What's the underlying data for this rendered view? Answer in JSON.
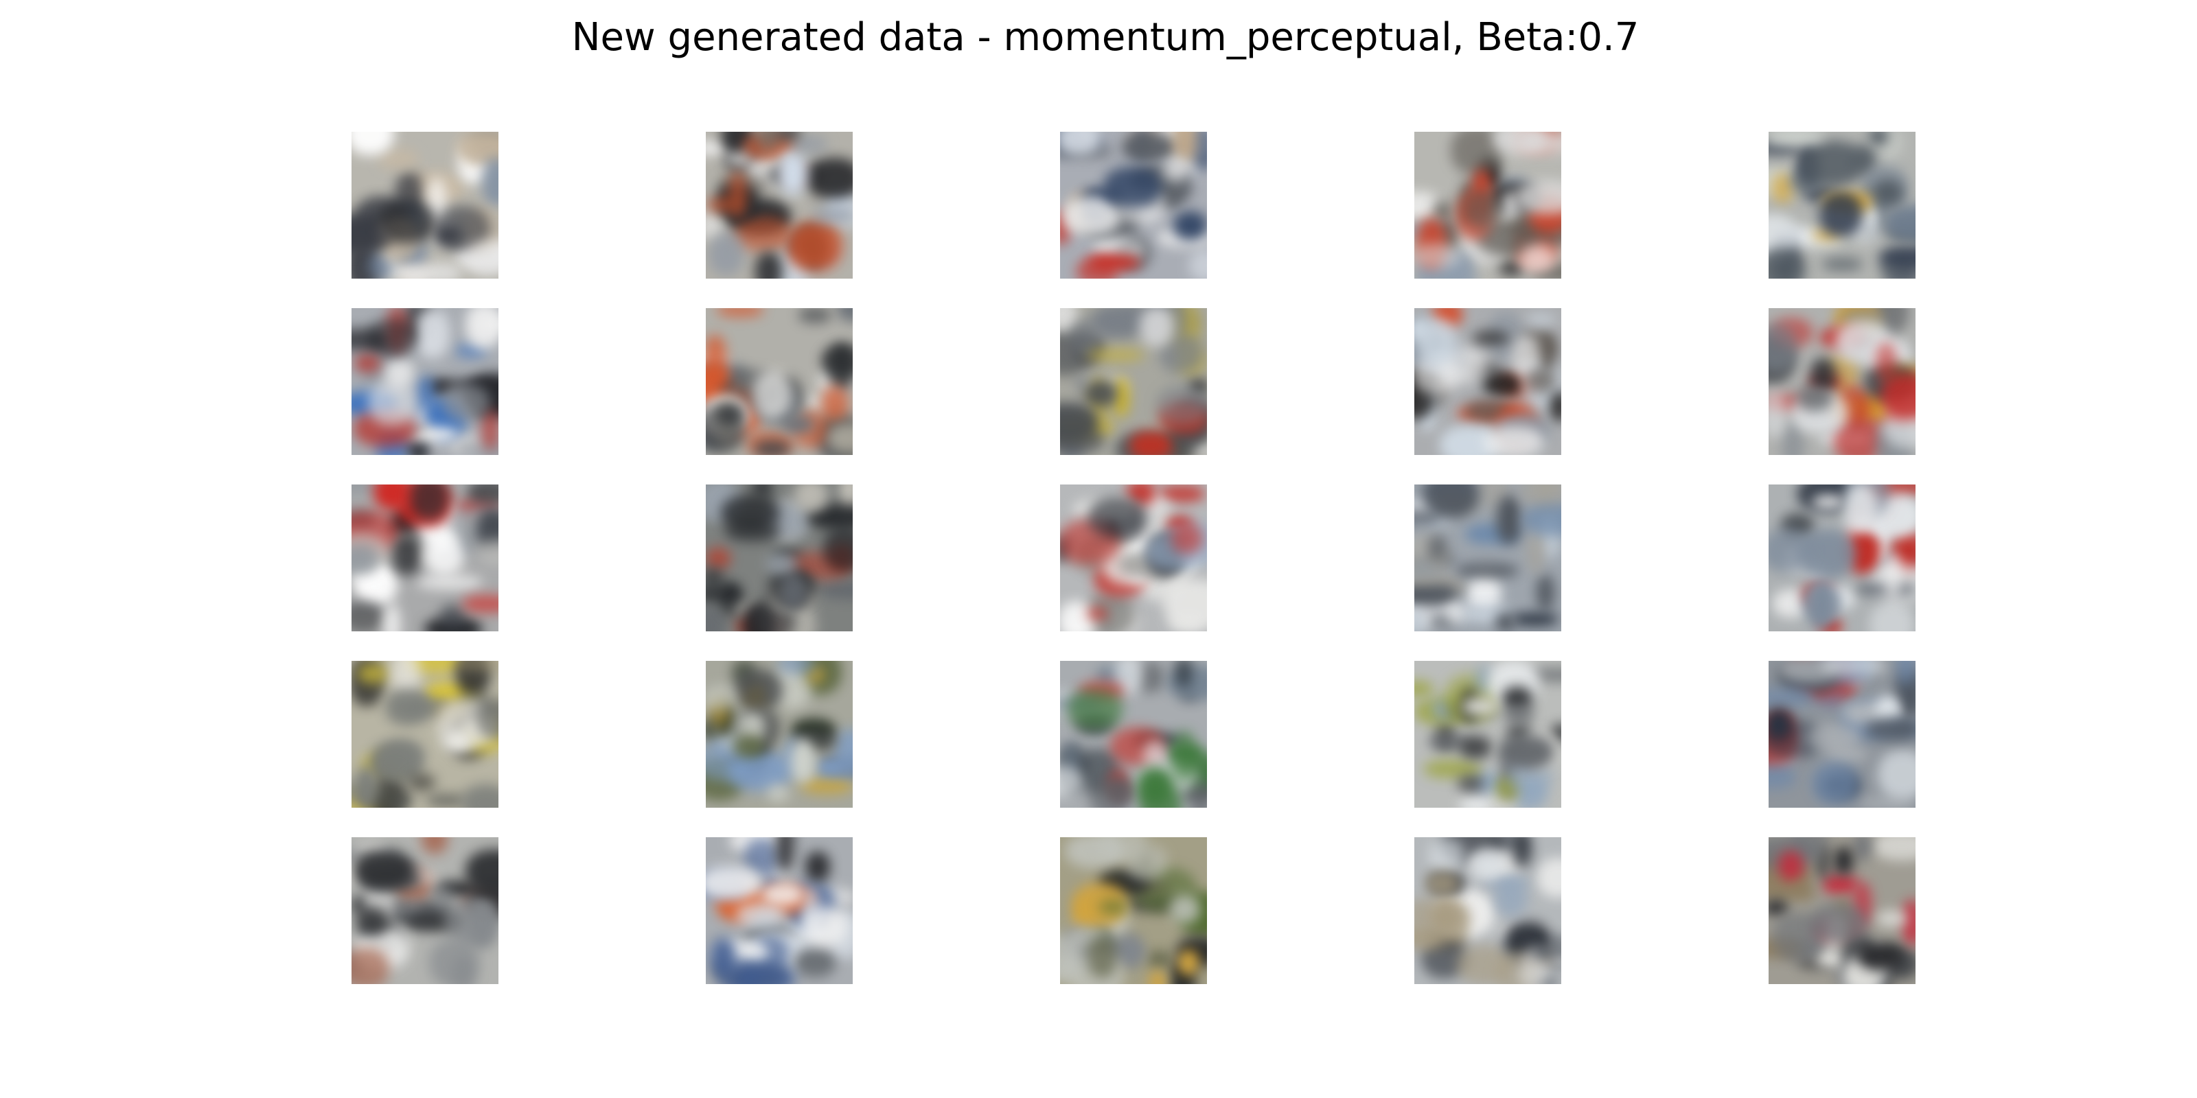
{
  "figure": {
    "title": "New generated data - momentum_perceptual, Beta:0.7"
  },
  "grid": {
    "rows": 5,
    "cols": 5,
    "tiles": [
      {
        "bg": "#b8b6ae",
        "colors": [
          "#ffffff",
          "#3a3d45",
          "#6f84a0",
          "#c9b9a2",
          "#222428",
          "#e8e8e8"
        ]
      },
      {
        "bg": "#b3b1aa",
        "colors": [
          "#d2ddea",
          "#2a2b2e",
          "#c9532c",
          "#8a94a3",
          "#efefef",
          "#6e6a63"
        ]
      },
      {
        "bg": "#a9adb5",
        "colors": [
          "#2e4263",
          "#d8dee6",
          "#c62b22",
          "#5a5f66",
          "#f2f2f2",
          "#c0a88a"
        ]
      },
      {
        "bg": "#b7b7b2",
        "colors": [
          "#ffffff",
          "#1e1d1f",
          "#c8452e",
          "#8c9bad",
          "#dcdcdc",
          "#5f5b55"
        ]
      },
      {
        "bg": "#b2b4b1",
        "colors": [
          "#d6a534",
          "#2f3a4d",
          "#e9eef2",
          "#6d7c8e",
          "#cfd4cf",
          "#515a62"
        ]
      },
      {
        "bg": "#a8acb2",
        "colors": [
          "#3c72bf",
          "#24252a",
          "#d9dde3",
          "#b8332c",
          "#8a8f96",
          "#f1f1f1"
        ]
      },
      {
        "bg": "#b1b0aa",
        "colors": [
          "#d7562a",
          "#26292c",
          "#e7e7e5",
          "#6d737a",
          "#3f4348",
          "#c8c3b4"
        ]
      },
      {
        "bg": "#a7a79f",
        "colors": [
          "#c42f20",
          "#2a2a2a",
          "#c9b22e",
          "#7a8088",
          "#e6e6e6",
          "#474b50"
        ]
      },
      {
        "bg": "#abadb0",
        "colors": [
          "#d1dce6",
          "#1f1e1e",
          "#d9421d",
          "#87919d",
          "#f3f3f3",
          "#5e5852"
        ]
      },
      {
        "bg": "#b0b1af",
        "colors": [
          "#e2e5e8",
          "#c22a27",
          "#2b2d31",
          "#7b838c",
          "#d3a035",
          "#4e5155"
        ]
      },
      {
        "bg": "#a9aaab",
        "colors": [
          "#d02a25",
          "#ffffff",
          "#27292d",
          "#8e959c",
          "#3d424a",
          "#c5c5c1"
        ]
      },
      {
        "bg": "#7e817f",
        "colors": [
          "#1f2226",
          "#c9c6bd",
          "#b73d2a",
          "#5e636a",
          "#9aa3ad",
          "#36393c"
        ]
      },
      {
        "bg": "#b6b8ba",
        "colors": [
          "#ffffff",
          "#c52c25",
          "#2a2e35",
          "#9ab0cb",
          "#7e7e7a",
          "#e8e8e6"
        ]
      },
      {
        "bg": "#9ea5ad",
        "colors": [
          "#2c3542",
          "#c2ccd6",
          "#6e8aab",
          "#eef0f2",
          "#50565e",
          "#a6a39b"
        ]
      },
      {
        "bg": "#adb1b3",
        "colors": [
          "#e3e7ea",
          "#c02d26",
          "#2b3340",
          "#7c8a9b",
          "#f6f6f6",
          "#4d5257"
        ]
      },
      {
        "bg": "#b8b5a4",
        "colors": [
          "#d8c43a",
          "#2b2b28",
          "#ecebe5",
          "#7c7f7b",
          "#a09472",
          "#4a4d4b"
        ]
      },
      {
        "bg": "#a6a79c",
        "colors": [
          "#7e9dc6",
          "#263022",
          "#d1d4cc",
          "#5f6a45",
          "#c8a43a",
          "#3f4245"
        ]
      },
      {
        "bg": "#a8acb0",
        "colors": [
          "#c72e26",
          "#273038",
          "#e8ecef",
          "#6d7e8f",
          "#3e7a3c",
          "#5a5e63"
        ]
      },
      {
        "bg": "#bbbdbb",
        "colors": [
          "#e9ecee",
          "#2a2c2f",
          "#8fa6bf",
          "#9aa336",
          "#d8d8d4",
          "#5d6166"
        ]
      },
      {
        "bg": "#8f959c",
        "colors": [
          "#2a3342",
          "#dfe5ea",
          "#6e88aa",
          "#c3312b",
          "#4b535e",
          "#b5b9bd"
        ]
      },
      {
        "bg": "#b2b3b0",
        "colors": [
          "#e8e6e0",
          "#2b2d30",
          "#a76a55",
          "#85898d",
          "#f4f4f2",
          "#4c4f53"
        ]
      },
      {
        "bg": "#a9adb2",
        "colors": [
          "#e2561b",
          "#232428",
          "#dbe2ea",
          "#3e5a8f",
          "#f3f3f3",
          "#6d7277"
        ]
      },
      {
        "bg": "#a39f86",
        "colors": [
          "#4f6a2e",
          "#2b2d2c",
          "#d2a43d",
          "#80868e",
          "#c1c4be",
          "#5f6247"
        ]
      },
      {
        "bg": "#b4b8bb",
        "colors": [
          "#dfe5ea",
          "#2b3038",
          "#92a6bd",
          "#5d636b",
          "#f1f1f0",
          "#a89c82"
        ]
      },
      {
        "bg": "#9f9c93",
        "colors": [
          "#c7283a",
          "#2a2b2e",
          "#e2e2de",
          "#6e7278",
          "#8c7a5a",
          "#45484c"
        ]
      }
    ]
  }
}
